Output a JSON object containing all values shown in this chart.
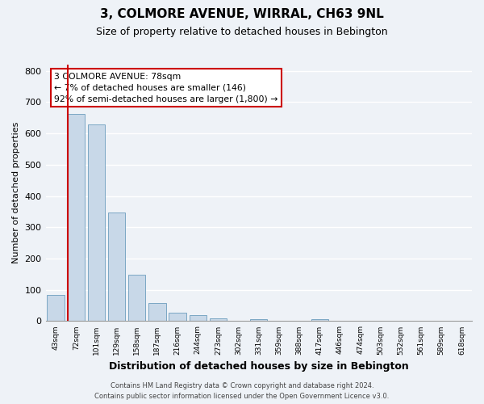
{
  "title": "3, COLMORE AVENUE, WIRRAL, CH63 9NL",
  "subtitle": "Size of property relative to detached houses in Bebington",
  "bar_labels": [
    "43sqm",
    "72sqm",
    "101sqm",
    "129sqm",
    "158sqm",
    "187sqm",
    "216sqm",
    "244sqm",
    "273sqm",
    "302sqm",
    "331sqm",
    "359sqm",
    "388sqm",
    "417sqm",
    "446sqm",
    "474sqm",
    "503sqm",
    "532sqm",
    "561sqm",
    "589sqm",
    "618sqm"
  ],
  "bar_values": [
    83,
    663,
    630,
    348,
    148,
    57,
    26,
    18,
    10,
    0,
    7,
    0,
    0,
    6,
    0,
    0,
    0,
    0,
    0,
    0,
    0
  ],
  "bar_color": "#c8d8e8",
  "bar_edge_color": "#7ba7c4",
  "ylim": [
    0,
    820
  ],
  "yticks": [
    0,
    100,
    200,
    300,
    400,
    500,
    600,
    700,
    800
  ],
  "ylabel": "Number of detached properties",
  "xlabel": "Distribution of detached houses by size in Bebington",
  "annotation_title": "3 COLMORE AVENUE: 78sqm",
  "annotation_line1": "← 7% of detached houses are smaller (146)",
  "annotation_line2": "92% of semi-detached houses are larger (1,800) →",
  "box_facecolor": "#ffffff",
  "box_edgecolor": "#cc0000",
  "red_line_color": "#cc0000",
  "footer_line1": "Contains HM Land Registry data © Crown copyright and database right 2024.",
  "footer_line2": "Contains public sector information licensed under the Open Government Licence v3.0.",
  "background_color": "#eef2f7",
  "grid_color": "#ffffff",
  "title_fontsize": 11,
  "subtitle_fontsize": 9
}
